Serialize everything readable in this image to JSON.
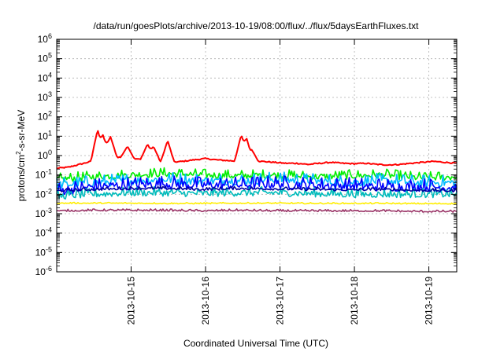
{
  "chart_data": {
    "type": "line",
    "title": "/data/run/goesPlots/archive/2013-10-19/08:00/flux/../flux/5daysEarthFluxes.txt",
    "xlabel": "Coordinated Universal Time (UTC)",
    "ylabel_parts": {
      "base": "protons/cm",
      "sup": "2",
      "rest": "-s-sr-MeV"
    },
    "yscale": "log",
    "ylim_exp": [
      -6,
      6
    ],
    "y_tick_exponents": [
      -6,
      -5,
      -4,
      -3,
      -2,
      -1,
      0,
      1,
      2,
      3,
      4,
      5,
      6
    ],
    "y_tick_base": "10",
    "xlim": [
      "2013-10-14 00:00",
      "2013-10-19 09:00"
    ],
    "x_ticks": [
      "2013-10-15",
      "2013-10-16",
      "2013-10-17",
      "2013-10-18",
      "2013-10-19"
    ],
    "grid": true,
    "series": [
      {
        "color": "#ff0000",
        "baseline": [
          0.22,
          0.25,
          0.35,
          0.5,
          0.7,
          0.85,
          0.8,
          0.7,
          0.6,
          0.5,
          0.45,
          0.5,
          0.6,
          0.7,
          0.6,
          0.55,
          0.5,
          0.55,
          0.5,
          0.45,
          0.4,
          0.4,
          0.35,
          0.4,
          0.45,
          0.4,
          0.38,
          0.4,
          0.35,
          0.33,
          0.35,
          0.4,
          0.45,
          0.5,
          0.45,
          0.4
        ],
        "spikes": [
          {
            "day": 0.55,
            "value": 22
          },
          {
            "day": 0.62,
            "value": 12
          },
          {
            "day": 0.72,
            "value": 10
          },
          {
            "day": 0.95,
            "value": 3
          },
          {
            "day": 1.22,
            "value": 4
          },
          {
            "day": 1.3,
            "value": 3
          },
          {
            "day": 1.49,
            "value": 6
          },
          {
            "day": 2.48,
            "value": 12
          },
          {
            "day": 2.55,
            "value": 8
          },
          {
            "day": 2.62,
            "value": 2
          }
        ]
      },
      {
        "color": "#00ee00",
        "baseline": [
          0.06,
          0.08,
          0.1,
          0.12,
          0.1,
          0.09,
          0.1,
          0.08,
          0.09,
          0.1,
          0.07,
          0.08
        ],
        "amp": 0.35
      },
      {
        "color": "#00bbff",
        "baseline": [
          0.03,
          0.04,
          0.05,
          0.06,
          0.05,
          0.05,
          0.06,
          0.05,
          0.04,
          0.05,
          0.04,
          0.04
        ],
        "amp": 0.45
      },
      {
        "color": "#0000ff",
        "baseline": [
          0.015,
          0.025,
          0.03,
          0.035,
          0.03,
          0.03,
          0.035,
          0.03,
          0.028,
          0.025,
          0.025,
          0.022
        ],
        "amp": 0.5
      },
      {
        "color": "#00bbbb",
        "baseline": [
          0.008,
          0.01,
          0.012,
          0.012,
          0.011,
          0.012,
          0.012,
          0.011,
          0.01,
          0.01,
          0.01,
          0.01
        ],
        "amp": 0.35
      },
      {
        "color": "#0000a0",
        "baseline": [
          0.015,
          0.018,
          0.02,
          0.02,
          0.018,
          0.02,
          0.019,
          0.018,
          0.017,
          0.018,
          0.016,
          0.015
        ],
        "amp": 0.12
      },
      {
        "color": "#ffee00",
        "baseline": [
          0.0035,
          0.0035,
          0.0035,
          0.0034,
          0.0034,
          0.0035,
          0.0035,
          0.0034,
          0.0034,
          0.0034,
          0.0033,
          0.0033
        ],
        "amp": 0.05
      },
      {
        "color": "#993366",
        "baseline": [
          0.0014,
          0.0015,
          0.0015,
          0.0015,
          0.0014,
          0.0015,
          0.0014,
          0.0014,
          0.0014,
          0.0014,
          0.0013,
          0.0013
        ],
        "amp": 0.08
      }
    ]
  }
}
